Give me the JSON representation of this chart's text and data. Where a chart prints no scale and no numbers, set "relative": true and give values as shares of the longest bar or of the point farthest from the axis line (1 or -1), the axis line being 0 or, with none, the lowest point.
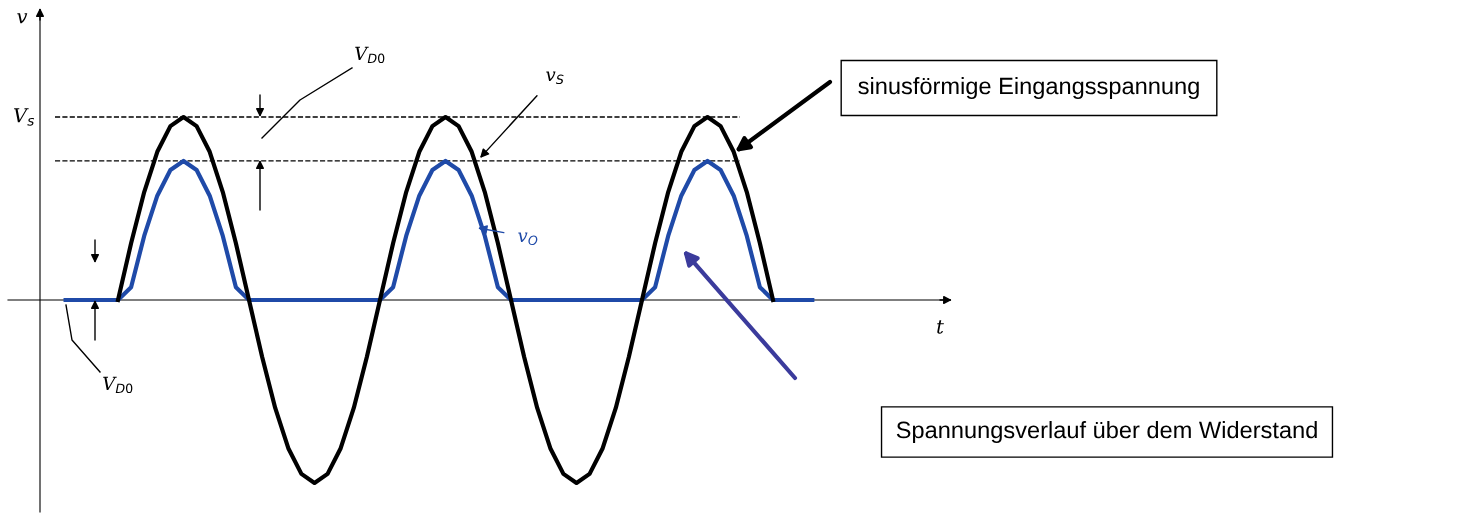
{
  "chart_data": {
    "type": "line",
    "relative": true,
    "line_style": "solid",
    "marker": "none",
    "categories": [
      null,
      null,
      null,
      null,
      null,
      null,
      null,
      null,
      null,
      null,
      null,
      null,
      null,
      null,
      null,
      null,
      null,
      null,
      null,
      null,
      null,
      null,
      null,
      null,
      null,
      null,
      null,
      null,
      null,
      null,
      null,
      null,
      null,
      null,
      null,
      null,
      null,
      null,
      null,
      null,
      null,
      null,
      null,
      null,
      null,
      null,
      null,
      null,
      null,
      null,
      null,
      null,
      null,
      null,
      null,
      null,
      null,
      null
    ],
    "series": [
      {
        "name": "v$_{S}$",
        "color": "#000000",
        "values": [
          null,
          null,
          null,
          null,
          0,
          0.31,
          0.59,
          0.81,
          0.95,
          1,
          0.95,
          0.81,
          0.59,
          0.31,
          0,
          -0.31,
          -0.59,
          -0.81,
          -0.95,
          -1,
          -0.95,
          -0.81,
          -0.59,
          -0.31,
          0,
          0.31,
          0.59,
          0.81,
          0.95,
          1,
          0.95,
          0.81,
          0.59,
          0.31,
          0,
          -0.31,
          -0.59,
          -0.81,
          -0.95,
          -1,
          -0.95,
          -0.81,
          -0.59,
          -0.31,
          0,
          0.31,
          0.59,
          0.81,
          0.95,
          1,
          0.95,
          0.81,
          0.59,
          0.31,
          0,
          null,
          null,
          null
        ]
      },
      {
        "name": "v$_{O}$",
        "color": "#1f4aa8",
        "values": [
          0,
          0,
          0,
          0,
          0,
          0.07,
          0.35,
          0.57,
          0.71,
          0.76,
          0.71,
          0.57,
          0.35,
          0.07,
          0,
          0,
          0,
          0,
          0,
          0,
          0,
          0,
          0,
          0,
          0,
          0.07,
          0.35,
          0.57,
          0.71,
          0.76,
          0.71,
          0.57,
          0.35,
          0.07,
          0,
          0,
          0,
          0,
          0,
          0,
          0,
          0,
          0,
          0,
          0,
          0.07,
          0.35,
          0.57,
          0.71,
          0.76,
          0.71,
          0.57,
          0.35,
          0.07,
          0,
          0,
          0,
          0
        ]
      }
    ],
    "ref_lines": [
      {
        "axis": "y",
        "value": 1,
        "label": "V$_{s}$",
        "line_style": "dashed",
        "color": "#000000"
      },
      {
        "axis": "y",
        "value": 0.76,
        "line_style": "dashed",
        "color": "#000000"
      }
    ],
    "annotations": [
      "V$_{D0}$",
      "V$_{D0}$",
      "sinusförmige Eingangsspannung",
      "Spannungsverlauf über dem Widerstand",
      "t",
      "v"
    ]
  }
}
